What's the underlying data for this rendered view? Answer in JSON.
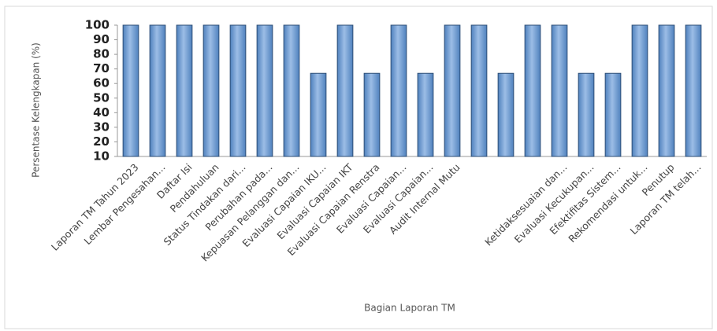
{
  "chart_data": {
    "type": "bar",
    "x_label": "Bagian Laporan TM",
    "y_label": "Persentase Kelengkapan (%)",
    "categories": [
      "Laporan TM Tahun 2023",
      "Lembar Pengesahan...",
      "Daftar Isi",
      "Pendahuluan",
      "Status Tindakan dari...",
      "Perubahan pada...",
      "Kepuasan Pelanggan dan...",
      "Evaluasi Capaian IKU...",
      "Evaluasi Capaian IKT",
      "Evaluasi Capaian Renstra",
      "Evaluasi Capaian...",
      "Evaluasi Capaian...",
      "Audit Internal Mutu",
      null,
      null,
      null,
      "Ketidaksesuaian dan...",
      "Evaluasi Kecukupan...",
      "Efektifitas Sistem...",
      "Rekomendasi untuk...",
      "Penutup",
      "Laporan TM telah..."
    ],
    "values": [
      100,
      100,
      100,
      100,
      100,
      100,
      100,
      67,
      100,
      67,
      100,
      67,
      100,
      100,
      67,
      100,
      100,
      67,
      67,
      100,
      100,
      100
    ],
    "color": "#4f81bd",
    "ylim": [
      10,
      100
    ],
    "yticks": [
      10,
      20,
      30,
      40,
      50,
      60,
      70,
      80,
      90,
      100
    ]
  }
}
